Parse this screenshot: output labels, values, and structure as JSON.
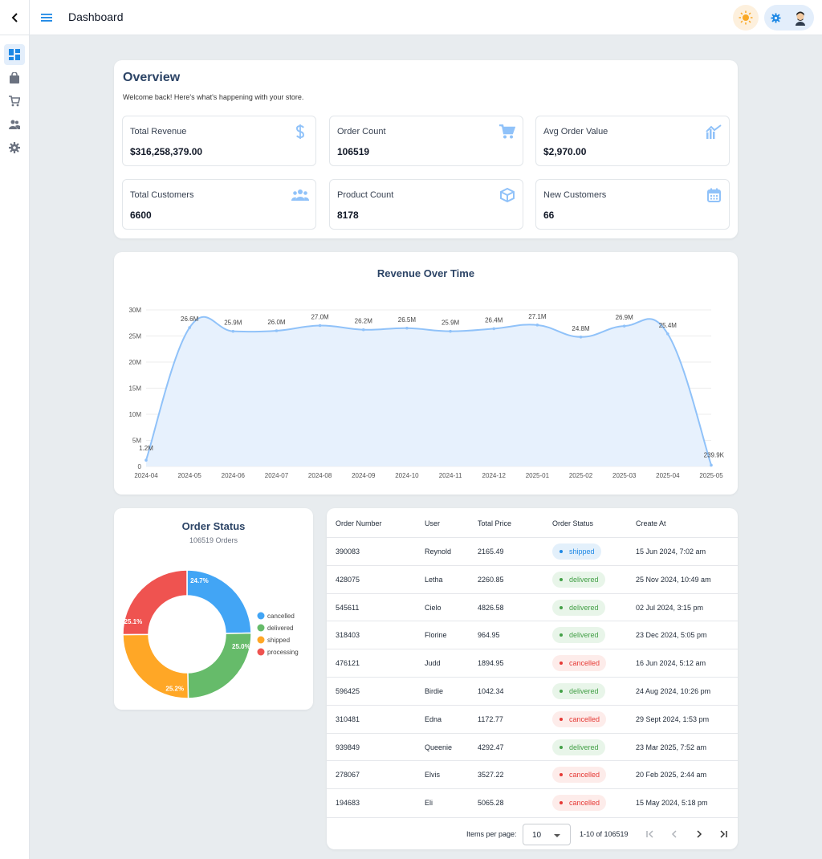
{
  "topbar": {
    "title": "Dashboard"
  },
  "overview": {
    "title": "Overview",
    "subtitle": "Welcome back! Here's what's happening with your store.",
    "stats": [
      {
        "label": "Total Revenue",
        "value": "$316,258,379.00",
        "icon": "dollar-icon"
      },
      {
        "label": "Order Count",
        "value": "106519",
        "icon": "cart-icon"
      },
      {
        "label": "Avg Order Value",
        "value": "$2,970.00",
        "icon": "chart-trend-icon"
      },
      {
        "label": "Total Customers",
        "value": "6600",
        "icon": "people-icon"
      },
      {
        "label": "Product Count",
        "value": "8178",
        "icon": "box-icon"
      },
      {
        "label": "New Customers",
        "value": "66",
        "icon": "calendar-icon"
      }
    ]
  },
  "chart_data": [
    {
      "type": "area",
      "title": "Revenue Over Time",
      "x": [
        "2024-04",
        "2024-05",
        "2024-06",
        "2024-07",
        "2024-08",
        "2024-09",
        "2024-10",
        "2024-11",
        "2024-12",
        "2025-01",
        "2025-02",
        "2025-03",
        "2025-04",
        "2025-05"
      ],
      "values": [
        1200000,
        26600000,
        25900000,
        26000000,
        27000000,
        26200000,
        26500000,
        25900000,
        26400000,
        27100000,
        24800000,
        26900000,
        25400000,
        239900
      ],
      "data_labels": [
        "1.2M",
        "26.6M",
        "25.9M",
        "26.0M",
        "27.0M",
        "26.2M",
        "26.5M",
        "25.9M",
        "26.4M",
        "27.1M",
        "24.8M",
        "26.9M",
        "25.4M",
        "239.9K"
      ],
      "y_ticks": [
        "0",
        "5M",
        "10M",
        "15M",
        "20M",
        "25M",
        "30M"
      ],
      "ylim": [
        0,
        30000000
      ],
      "grid": true,
      "color": "#90c2f9",
      "fill": "#e7f1fd"
    },
    {
      "type": "pie",
      "title": "Order Status",
      "subtitle": "106519 Orders",
      "categories": [
        "cancelled",
        "delivered",
        "shipped",
        "processing"
      ],
      "values": [
        24.7,
        25.0,
        25.2,
        25.1
      ],
      "labels": [
        "24.7%",
        "25.0%",
        "25.2%",
        "25.1%"
      ],
      "colors": [
        "#42a5f5",
        "#66bb6a",
        "#ffa726",
        "#ef5350"
      ],
      "legend": "right"
    }
  ],
  "orders": {
    "headers": [
      "Order Number",
      "User",
      "Total Price",
      "Order Status",
      "Create At"
    ],
    "rows": [
      {
        "number": "390083",
        "user": "Reynold",
        "price": "2165.49",
        "status": "shipped",
        "created": "15 Jun 2024, 7:02 am"
      },
      {
        "number": "428075",
        "user": "Letha",
        "price": "2260.85",
        "status": "delivered",
        "created": "25 Nov 2024, 10:49 am"
      },
      {
        "number": "545611",
        "user": "Cielo",
        "price": "4826.58",
        "status": "delivered",
        "created": "02 Jul 2024, 3:15 pm"
      },
      {
        "number": "318403",
        "user": "Florine",
        "price": "964.95",
        "status": "delivered",
        "created": "23 Dec 2024, 5:05 pm"
      },
      {
        "number": "476121",
        "user": "Judd",
        "price": "1894.95",
        "status": "cancelled",
        "created": "16 Jun 2024, 5:12 am"
      },
      {
        "number": "596425",
        "user": "Birdie",
        "price": "1042.34",
        "status": "delivered",
        "created": "24 Aug 2024, 10:26 pm"
      },
      {
        "number": "310481",
        "user": "Edna",
        "price": "1172.77",
        "status": "cancelled",
        "created": "29 Sept 2024, 1:53 pm"
      },
      {
        "number": "939849",
        "user": "Queenie",
        "price": "4292.47",
        "status": "delivered",
        "created": "23 Mar 2025, 7:52 am"
      },
      {
        "number": "278067",
        "user": "Elvis",
        "price": "3527.22",
        "status": "cancelled",
        "created": "20 Feb 2025, 2:44 am"
      },
      {
        "number": "194683",
        "user": "Eli",
        "price": "5065.28",
        "status": "cancelled",
        "created": "15 May 2024, 5:18 pm"
      }
    ],
    "pager": {
      "items_per_page_label": "Items per page:",
      "items_per_page": "10",
      "range": "1-10 of 106519"
    }
  },
  "colors": {
    "accent": "#1e88e5",
    "title": "#2c4466",
    "background": "#e8ecef"
  }
}
